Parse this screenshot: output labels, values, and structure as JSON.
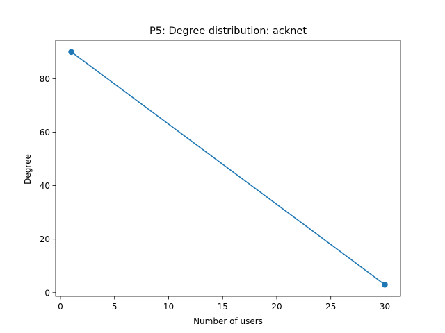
{
  "chart_data": {
    "type": "line",
    "title": "P5: Degree distribution: acknet",
    "xlabel": "Number of users",
    "ylabel": "Degree",
    "xlim": [
      -0.45,
      31.45
    ],
    "ylim": [
      -1.35,
      94.35
    ],
    "x_ticks": [
      0,
      5,
      10,
      15,
      20,
      25,
      30
    ],
    "y_ticks": [
      0,
      20,
      40,
      60,
      80
    ],
    "series": [
      {
        "name": "acknet",
        "color": "#1f77b4",
        "marker": "circle",
        "x": [
          1,
          30
        ],
        "y": [
          90,
          3
        ]
      }
    ]
  }
}
